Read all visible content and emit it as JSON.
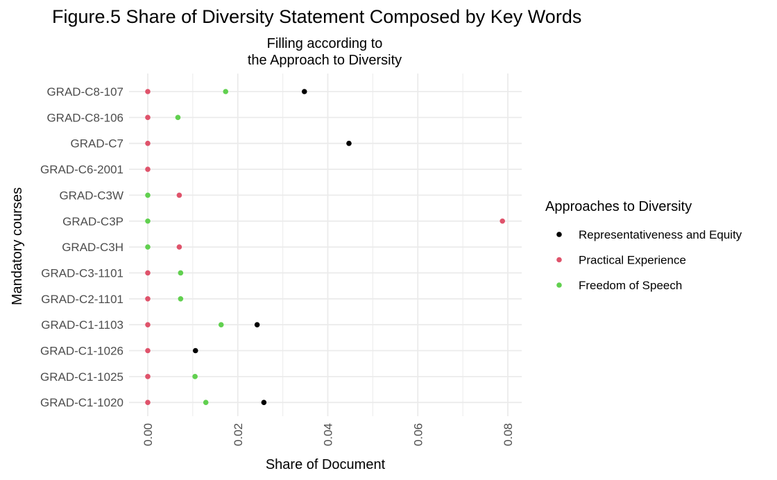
{
  "colors": {
    "Representativeness and Equity": "#000000",
    "Practical Experience": "#DF536B",
    "Freedom of Speech": "#61D04F",
    "grid": "#EBEBEB"
  },
  "chart_data": {
    "type": "scatter",
    "title": "Figure.5 Share of Diversity Statement Composed by Key Words",
    "subtitle_lines": [
      "Filling according to",
      "the Approach to Diversity"
    ],
    "xlabel": "Share of Document",
    "ylabel": "Mandatory courses",
    "xlim": [
      0.0,
      0.08
    ],
    "xticks": [
      "0.00",
      "0.02",
      "0.04",
      "0.06",
      "0.08"
    ],
    "xtick_values": [
      0.0,
      0.02,
      0.04,
      0.06,
      0.08
    ],
    "categories": [
      "GRAD-C8-107",
      "GRAD-C8-106",
      "GRAD-C7",
      "GRAD-C6-2001",
      "GRAD-C3W",
      "GRAD-C3P",
      "GRAD-C3H",
      "GRAD-C3-1101",
      "GRAD-C2-1101",
      "GRAD-C1-1103",
      "GRAD-C1-1026",
      "GRAD-C1-1025",
      "GRAD-C1-1020"
    ],
    "grid": true,
    "legend": {
      "title": "Approaches to Diversity",
      "position": "right",
      "entries": [
        "Representativeness and Equity",
        "Practical Experience",
        "Freedom of Speech"
      ]
    },
    "series": [
      {
        "name": "Representativeness and Equity",
        "points": [
          {
            "category": "GRAD-C8-107",
            "x": 0.0348
          },
          {
            "category": "GRAD-C7",
            "x": 0.0447
          },
          {
            "category": "GRAD-C1-1103",
            "x": 0.0243
          },
          {
            "category": "GRAD-C1-1026",
            "x": 0.0106
          },
          {
            "category": "GRAD-C1-1020",
            "x": 0.0258
          }
        ]
      },
      {
        "name": "Freedom of Speech",
        "points": [
          {
            "category": "GRAD-C8-107",
            "x": 0.0173
          },
          {
            "category": "GRAD-C8-106",
            "x": 0.0067
          },
          {
            "category": "GRAD-C3W",
            "x": 0.0
          },
          {
            "category": "GRAD-C3P",
            "x": 0.0
          },
          {
            "category": "GRAD-C3H",
            "x": 0.0
          },
          {
            "category": "GRAD-C3-1101",
            "x": 0.0073
          },
          {
            "category": "GRAD-C2-1101",
            "x": 0.0073
          },
          {
            "category": "GRAD-C1-1103",
            "x": 0.0163
          },
          {
            "category": "GRAD-C1-1025",
            "x": 0.0105
          },
          {
            "category": "GRAD-C1-1020",
            "x": 0.0129
          }
        ]
      },
      {
        "name": "Practical Experience",
        "points": [
          {
            "category": "GRAD-C8-107",
            "x": 0.0
          },
          {
            "category": "GRAD-C8-106",
            "x": 0.0
          },
          {
            "category": "GRAD-C7",
            "x": 0.0
          },
          {
            "category": "GRAD-C6-2001",
            "x": 0.0
          },
          {
            "category": "GRAD-C3W",
            "x": 0.007
          },
          {
            "category": "GRAD-C3P",
            "x": 0.0788
          },
          {
            "category": "GRAD-C3H",
            "x": 0.007
          },
          {
            "category": "GRAD-C3-1101",
            "x": 0.0
          },
          {
            "category": "GRAD-C2-1101",
            "x": 0.0
          },
          {
            "category": "GRAD-C1-1103",
            "x": 0.0
          },
          {
            "category": "GRAD-C1-1026",
            "x": 0.0
          },
          {
            "category": "GRAD-C1-1025",
            "x": 0.0
          },
          {
            "category": "GRAD-C1-1020",
            "x": 0.0
          }
        ]
      }
    ]
  }
}
